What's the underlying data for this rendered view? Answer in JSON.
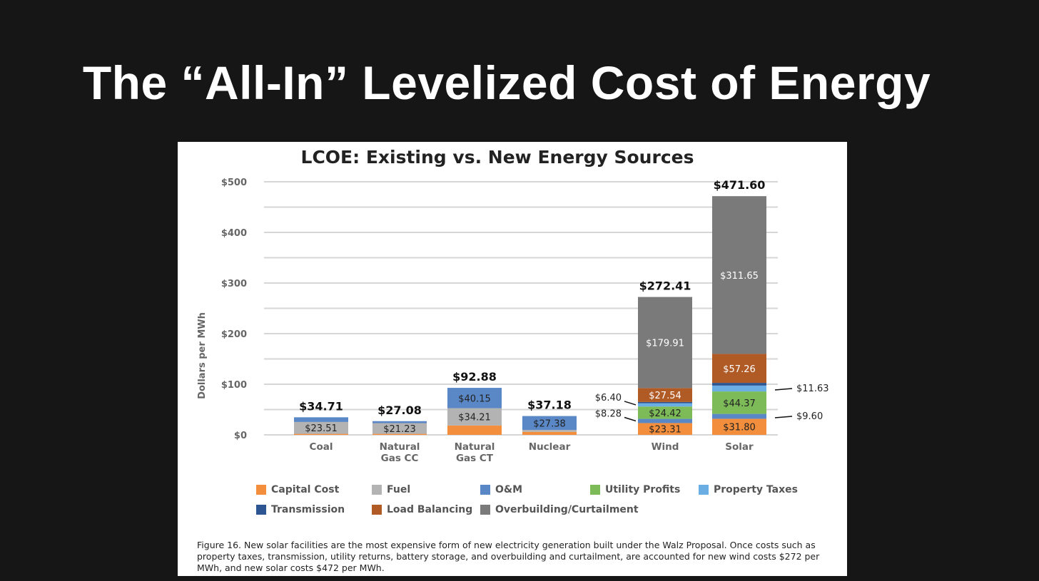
{
  "slide_title": "The “All-In” Levelized Cost of Energy",
  "chart_data": {
    "type": "bar",
    "stacked": true,
    "title": "LCOE: Existing vs. New Energy Sources",
    "ylabel": "Dollars per MWh",
    "xlabel": "",
    "ylim": [
      0,
      500
    ],
    "yticks": [
      0,
      100,
      200,
      300,
      400,
      500
    ],
    "ytick_labels": [
      "$0",
      "$100",
      "$200",
      "$300",
      "$400",
      "$500"
    ],
    "grid": true,
    "legend_position": "bottom",
    "categories": [
      "Coal",
      "Natural Gas CC",
      "Natural Gas CT",
      "Nuclear",
      "Wind",
      "Solar"
    ],
    "category_lines": [
      [
        "Coal"
      ],
      [
        "Natural",
        "Gas CC"
      ],
      [
        "Natural",
        "Gas CT"
      ],
      [
        "Nuclear"
      ],
      [
        "Wind"
      ],
      [
        "Solar"
      ]
    ],
    "totals": [
      34.71,
      27.08,
      92.88,
      37.18,
      272.41,
      471.6
    ],
    "total_labels": [
      "$34.71",
      "$27.08",
      "$92.88",
      "$37.18",
      "$272.41",
      "$471.60"
    ],
    "series": [
      {
        "name": "Capital Cost",
        "color": "#f28e3c",
        "values": [
          2.0,
          2.0,
          18.52,
          6.0,
          23.31,
          31.8
        ],
        "labels": [
          "",
          "",
          "",
          "",
          "$23.31",
          "$31.80"
        ],
        "label_color": "#222"
      },
      {
        "name": "Fuel",
        "color": "#b3b3b3",
        "values": [
          23.51,
          21.23,
          34.21,
          3.8,
          0,
          0
        ],
        "labels": [
          "$23.51",
          "$21.23",
          "$34.21",
          "",
          "",
          ""
        ],
        "label_color": "#222"
      },
      {
        "name": "O&M",
        "color": "#5a87c6",
        "values": [
          9.2,
          3.85,
          40.15,
          27.38,
          8.28,
          9.6
        ],
        "labels": [
          "",
          "",
          "$40.15",
          "$27.38",
          "",
          ""
        ],
        "label_color": "#222"
      },
      {
        "name": "Utility Profits",
        "color": "#7dbb58",
        "values": [
          0,
          0,
          0,
          0,
          24.42,
          44.37
        ],
        "labels": [
          "",
          "",
          "",
          "",
          "$24.42",
          "$44.37"
        ],
        "label_color": "#222"
      },
      {
        "name": "Property Taxes",
        "color": "#6aaee3",
        "values": [
          0,
          0,
          0,
          0,
          6.4,
          11.63
        ],
        "labels": [
          "",
          "",
          "",
          "",
          "",
          ""
        ],
        "label_color": "#222"
      },
      {
        "name": "Transmission",
        "color": "#2d5592",
        "values": [
          0,
          0,
          0,
          0,
          2.55,
          5.29
        ],
        "labels": [
          "",
          "",
          "",
          "",
          "",
          ""
        ],
        "label_color": "#fff"
      },
      {
        "name": "Load Balancing",
        "color": "#b05a26",
        "values": [
          0,
          0,
          0,
          0,
          27.54,
          57.26
        ],
        "labels": [
          "",
          "",
          "",
          "",
          "$27.54",
          "$57.26"
        ],
        "label_color": "#fff"
      },
      {
        "name": "Overbuilding/Curtailment",
        "color": "#7a7a7a",
        "values": [
          0,
          0,
          0,
          0,
          179.91,
          311.65
        ],
        "labels": [
          "",
          "",
          "",
          "",
          "$179.91",
          "$311.65"
        ],
        "label_color": "#fff"
      }
    ],
    "annotations": [
      {
        "text": "$6.40",
        "category": "Wind",
        "series": "Property Taxes",
        "side": "left"
      },
      {
        "text": "$8.28",
        "category": "Wind",
        "series": "O&M",
        "side": "left"
      },
      {
        "text": "$11.63",
        "category": "Solar",
        "series": "Property Taxes",
        "side": "right"
      },
      {
        "text": "$9.60",
        "category": "Solar",
        "series": "O&M",
        "side": "right"
      }
    ]
  },
  "caption": "Figure 16. New solar facilities are the most expensive form of new electricity generation built under the Walz Proposal. Once costs such as property taxes, transmission, utility returns, battery storage, and overbuilding and curtailment, are accounted for new wind costs $272 per MWh, and new solar costs $472 per MWh."
}
